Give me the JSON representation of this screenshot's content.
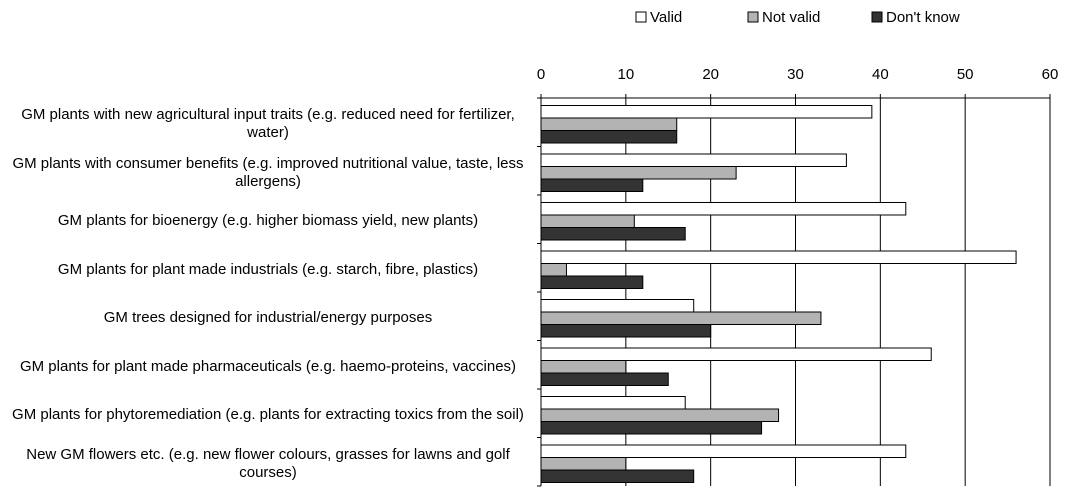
{
  "chart_data": {
    "type": "bar",
    "orientation": "horizontal",
    "categories": [
      "GM plants with new agricultural input traits (e.g. reduced need for fertilizer, water)",
      "GM plants with consumer benefits (e.g. improved nutritional value, taste, less allergens)",
      "GM plants for bioenergy (e.g. higher biomass yield, new plants)",
      "GM plants for plant made industrials (e.g. starch, fibre, plastics)",
      "GM trees designed for industrial/energy purposes",
      "GM plants for plant made pharmaceuticals (e.g. haemo-proteins, vaccines)",
      "GM plants for phytoremediation (e.g. plants for extracting toxics from the soil)",
      "New GM flowers etc. (e.g. new flower colours, grasses for lawns and golf courses)"
    ],
    "series": [
      {
        "name": "Valid",
        "color": "#ffffff",
        "values": [
          39,
          36,
          43,
          56,
          18,
          46,
          17,
          43
        ]
      },
      {
        "name": "Not valid",
        "color": "#b3b3b3",
        "values": [
          16,
          23,
          11,
          3,
          33,
          10,
          28,
          10
        ]
      },
      {
        "name": "Don't know",
        "color": "#333333",
        "values": [
          16,
          12,
          17,
          12,
          20,
          15,
          26,
          18
        ]
      }
    ],
    "xlim": [
      0,
      60
    ],
    "xticks": [
      0,
      10,
      20,
      30,
      40,
      50,
      60
    ],
    "grid": true,
    "legend": "top"
  }
}
